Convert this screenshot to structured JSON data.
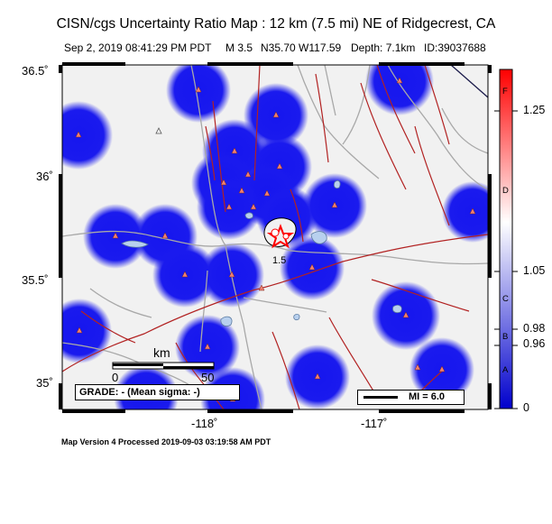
{
  "header": {
    "title": "CISN/cgs Uncertainty Ratio Map : 12 km (7.5 mi) NE of Ridgecrest, CA",
    "date": "Sep  2, 2019 08:41:29 PM PDT",
    "magnitude": "M 3.5",
    "coords": "N35.70 W117.59",
    "depth": "Depth: 7.1km",
    "event_id": "ID:39037688"
  },
  "axes": {
    "lat_labels": [
      "36.5˚",
      "36˚",
      "35.5˚",
      "35˚"
    ],
    "lon_labels": [
      "-118˚",
      "-117˚"
    ]
  },
  "map": {
    "contour_label": "1.5",
    "scale_bar": {
      "title": "km",
      "start": "0",
      "end": "50"
    },
    "grade_text": "GRADE: - (Mean sigma: -)",
    "mi_legend": "MI = 6.0",
    "colors": {
      "land": "#f1f1f1",
      "station_halo": "#1a1aee",
      "fault": "#b22222",
      "road": "#a8a8a8",
      "station": "#f08070",
      "epicenter": "#ff0000"
    }
  },
  "colorbar": {
    "tick_labels": [
      "1.25",
      "1.05",
      "0.98",
      "0.96",
      "0"
    ],
    "letters": [
      "F",
      "D",
      "C",
      "B",
      "A"
    ],
    "colors": [
      "#0000cc",
      "#ffffff",
      "#ff0000"
    ]
  },
  "footer": "Map Version 4 Processed 2019-09-03 03:19:58 AM PDT"
}
